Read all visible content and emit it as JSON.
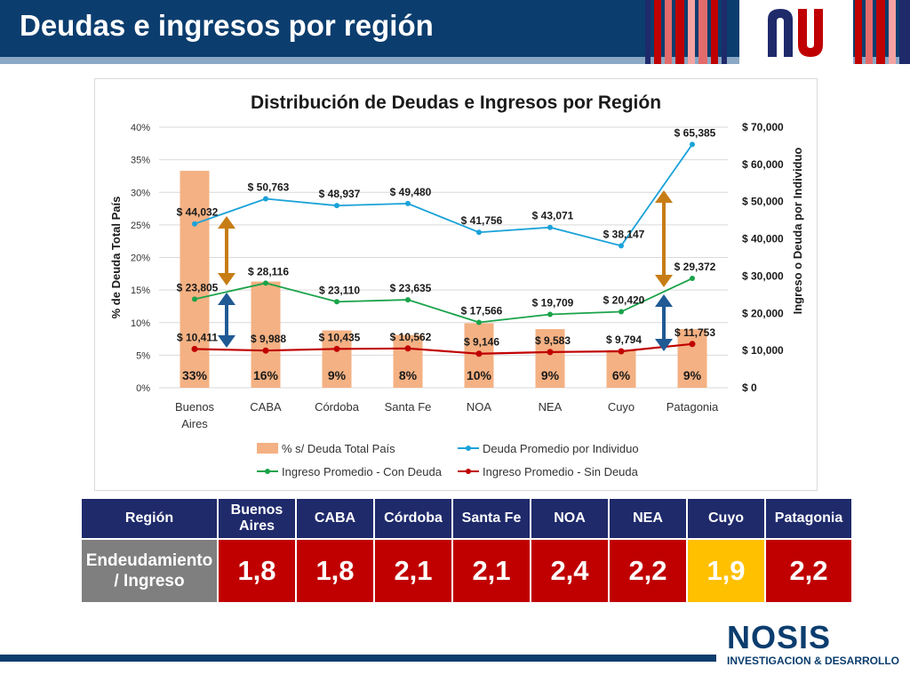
{
  "header": {
    "title": "Deudas e ingresos por región"
  },
  "colors": {
    "bar": "#f4b183",
    "debt": "#1aa2d8",
    "income_con": "#1aa34a",
    "income_sin": "#c00000",
    "arrow_orange": "#c77d14",
    "arrow_blue": "#1f5a94"
  },
  "chart_data": {
    "type": "bar",
    "title": "Distribución de Deudas e Ingresos por Región",
    "categories": [
      "Buenos Aires",
      "CABA",
      "Córdoba",
      "Santa Fe",
      "NOA",
      "NEA",
      "Cuyo",
      "Patagonia"
    ],
    "ylabel_left": "% de Deuda Total País",
    "ylabel_right": "Ingreso o Deuda por Individuo",
    "ylim_left": [
      0,
      40
    ],
    "ylim_right": [
      0,
      70000
    ],
    "left_ticks": [
      "0%",
      "5%",
      "10%",
      "15%",
      "20%",
      "25%",
      "30%",
      "35%",
      "40%"
    ],
    "right_ticks": [
      "$ 0",
      "$ 10,000",
      "$ 20,000",
      "$ 30,000",
      "$ 40,000",
      "$ 50,000",
      "$ 60,000",
      "$ 70,000"
    ],
    "bars": {
      "name": "% s/ Deuda Total País",
      "values": [
        33.3,
        16.3,
        8.8,
        8.1,
        9.9,
        9.0,
        5.8,
        9.0
      ],
      "labels": [
        "33%",
        "16%",
        "9%",
        "8%",
        "10%",
        "9%",
        "6%",
        "9%"
      ]
    },
    "series": [
      {
        "name": "Deuda Promedio por Individuo",
        "values": [
          44032,
          50763,
          48937,
          49480,
          41756,
          43071,
          38147,
          65385
        ],
        "labels": [
          "$ 44,032",
          "$ 50,763",
          "$ 48,937",
          "$ 49,480",
          "$ 41,756",
          "$ 43,071",
          "$ 38,147",
          "$ 65,385"
        ]
      },
      {
        "name": "Ingreso Promedio - Con Deuda",
        "values": [
          23805,
          28116,
          23110,
          23635,
          17566,
          19709,
          20420,
          29372
        ],
        "labels": [
          "$ 23,805",
          "$ 28,116",
          "$ 23,110",
          "$ 23,635",
          "$ 17,566",
          "$ 19,709",
          "$ 20,420",
          "$ 29,372"
        ]
      },
      {
        "name": "Ingreso Promedio - Sin Deuda",
        "values": [
          10411,
          9988,
          10435,
          10562,
          9146,
          9583,
          9794,
          11753
        ],
        "labels": [
          "$ 10,411",
          "$ 9,988",
          "$ 10,435",
          "$ 10,562",
          "$ 9,146",
          "$ 9,583",
          "$ 9,794",
          "$ 11,753"
        ]
      }
    ],
    "legend": "bottom",
    "grid": true
  },
  "table": {
    "header_label": "Región",
    "columns": [
      "Buenos Aires",
      "CABA",
      "Córdoba",
      "Santa Fe",
      "NOA",
      "NEA",
      "Cuyo",
      "Patagonia"
    ],
    "row_label": "Endeudamiento / Ingreso",
    "values": [
      "1,8",
      "1,8",
      "2,1",
      "2,1",
      "2,4",
      "2,2",
      "1,9",
      "2,2"
    ],
    "highlight": "Cuyo"
  },
  "footer": {
    "brand": "NOSIS",
    "subtitle": "INVESTIGACION & DESARROLLO"
  }
}
